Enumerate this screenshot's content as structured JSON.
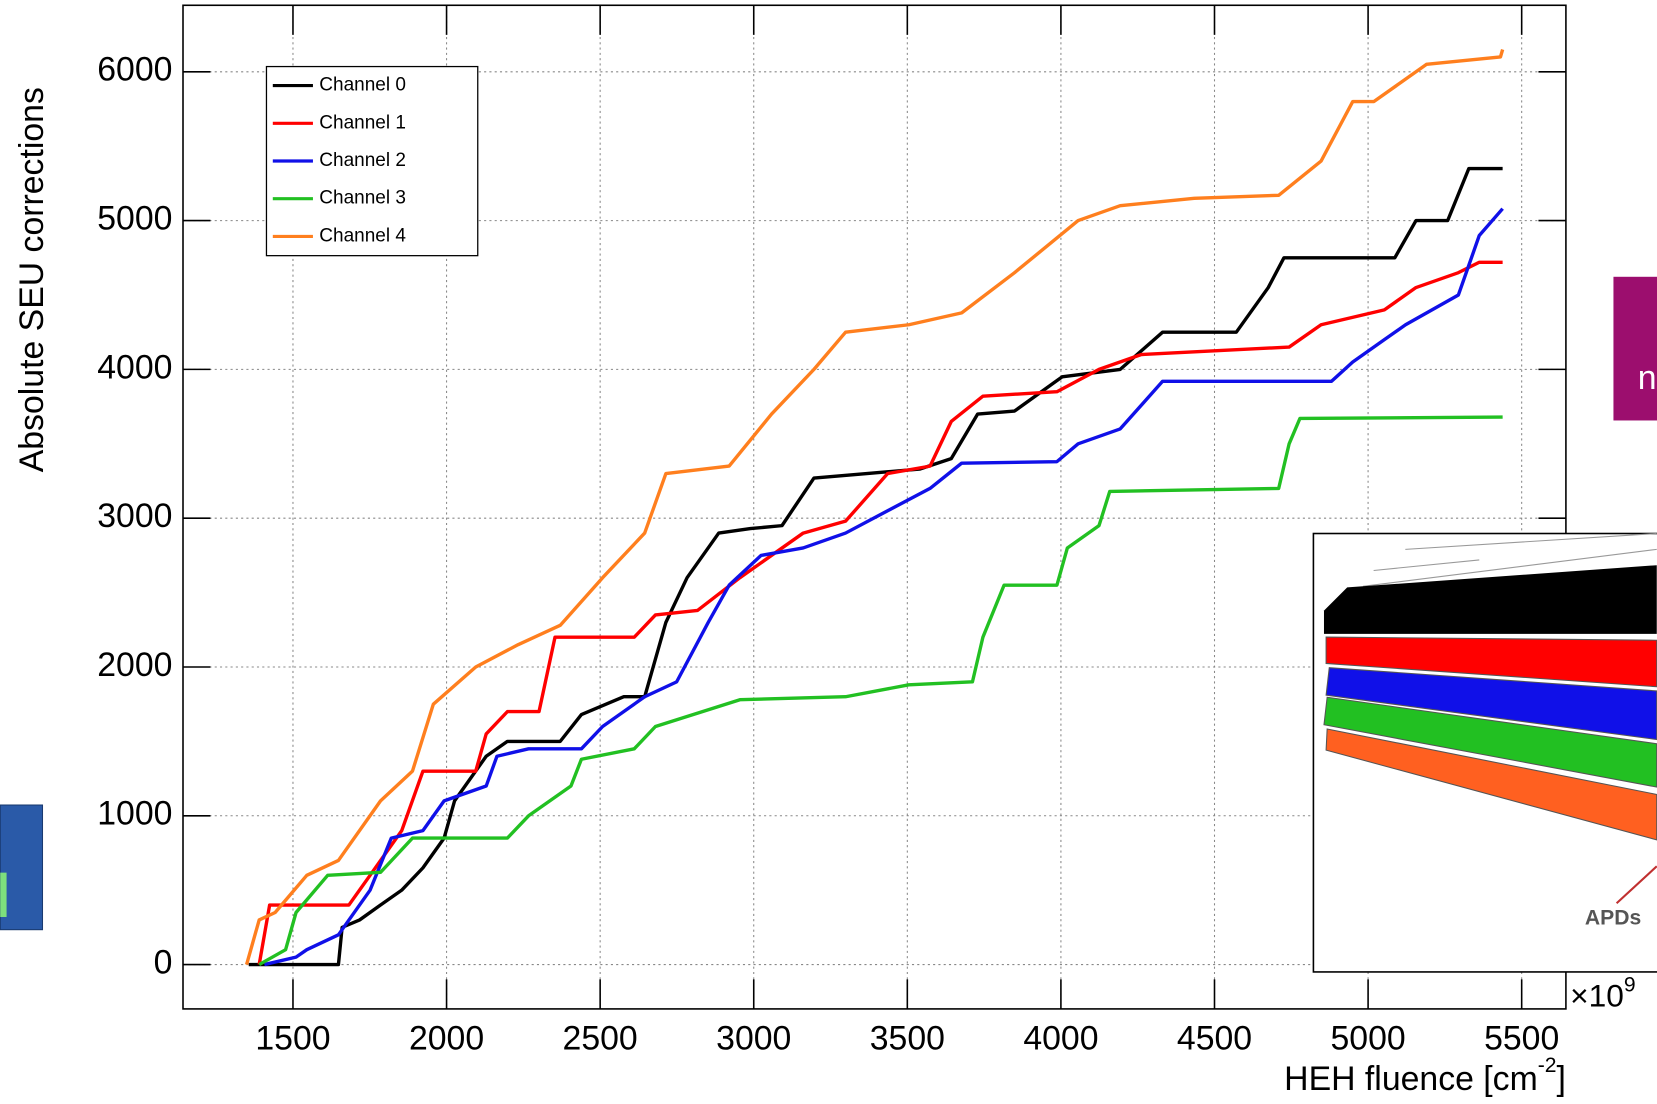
{
  "chart_data": {
    "type": "line",
    "y_label": "Absolute SEU corrections",
    "x_label": [
      "HEH fluence [cm",
      "-2",
      "]"
    ],
    "x_multiplier": [
      "×10",
      "9"
    ],
    "xlim": [
      1142,
      5644
    ],
    "xticks": [
      1500,
      2000,
      2500,
      3000,
      3500,
      4000,
      4500,
      5000,
      5500
    ],
    "ylim": [
      -298,
      6447
    ],
    "yticks": [
      0,
      1000,
      2000,
      3000,
      4000,
      5000,
      6000
    ],
    "grid": true,
    "legend": "upper left",
    "series": [
      {
        "name": "Channel 0",
        "color": "#000000",
        "x": [
          1356,
          1648,
          1660,
          1717,
          1785,
          1854,
          1923,
          1992,
          2026,
          2129,
          2198,
          2370,
          2439,
          2577,
          2645,
          2714,
          2783,
          2886,
          2989,
          3092,
          3196,
          3368,
          3540,
          3643,
          3729,
          3849,
          4004,
          4193,
          4331,
          4571,
          4675,
          4726,
          5087,
          5156,
          5259,
          5328,
          5438
        ],
        "values": [
          0,
          0,
          250,
          300,
          400,
          500,
          650,
          850,
          1100,
          1400,
          1500,
          1500,
          1680,
          1800,
          1800,
          2300,
          2600,
          2900,
          2930,
          2950,
          3270,
          3300,
          3330,
          3400,
          3700,
          3720,
          3950,
          4000,
          4250,
          4250,
          4550,
          4750,
          4750,
          5000,
          5000,
          5350,
          5350
        ]
      },
      {
        "name": "Channel 1",
        "color": "#ff0000",
        "x": [
          1390,
          1424,
          1682,
          1751,
          1854,
          1923,
          2095,
          2129,
          2198,
          2301,
          2353,
          2611,
          2680,
          2817,
          2955,
          3161,
          3299,
          3436,
          3574,
          3643,
          3746,
          3987,
          4124,
          4262,
          4743,
          4847,
          5053,
          5156,
          5294,
          5362,
          5438
        ],
        "values": [
          0,
          400,
          400,
          600,
          900,
          1300,
          1300,
          1550,
          1700,
          1700,
          2200,
          2200,
          2350,
          2380,
          2600,
          2900,
          2980,
          3300,
          3350,
          3650,
          3820,
          3850,
          4000,
          4100,
          4150,
          4300,
          4400,
          4550,
          4650,
          4720,
          4720
        ]
      },
      {
        "name": "Channel 2",
        "color": "#1010e8",
        "x": [
          1407,
          1510,
          1545,
          1648,
          1751,
          1820,
          1923,
          1992,
          2129,
          2164,
          2267,
          2439,
          2508,
          2645,
          2749,
          2852,
          2920,
          3024,
          3161,
          3299,
          3436,
          3574,
          3677,
          3987,
          4056,
          4193,
          4331,
          4881,
          4950,
          5053,
          5122,
          5294,
          5362,
          5438
        ],
        "values": [
          0,
          50,
          100,
          200,
          500,
          850,
          900,
          1100,
          1200,
          1400,
          1450,
          1450,
          1600,
          1800,
          1900,
          2300,
          2550,
          2750,
          2800,
          2900,
          3050,
          3200,
          3370,
          3380,
          3500,
          3600,
          3920,
          3920,
          4050,
          4200,
          4300,
          4500,
          4900,
          5080
        ]
      },
      {
        "name": "Channel 3",
        "color": "#22c022",
        "x": [
          1390,
          1476,
          1510,
          1613,
          1785,
          1889,
          2198,
          2267,
          2405,
          2439,
          2611,
          2680,
          2955,
          3299,
          3505,
          3712,
          3746,
          3815,
          3987,
          4021,
          4124,
          4159,
          4709,
          4743,
          4778,
          5438
        ],
        "values": [
          0,
          100,
          350,
          600,
          620,
          850,
          850,
          1000,
          1200,
          1380,
          1450,
          1600,
          1780,
          1800,
          1880,
          1900,
          2200,
          2550,
          2550,
          2800,
          2950,
          3180,
          3200,
          3500,
          3670,
          3680
        ]
      },
      {
        "name": "Channel 4",
        "color": "#ff7f1e",
        "x": [
          1349,
          1390,
          1442,
          1545,
          1648,
          1785,
          1889,
          1957,
          2095,
          2233,
          2370,
          2508,
          2645,
          2714,
          2920,
          3058,
          3196,
          3299,
          3505,
          3677,
          3849,
          4056,
          4193,
          4434,
          4709,
          4847,
          4950,
          5019,
          5190,
          5431,
          5438
        ],
        "values": [
          0,
          300,
          350,
          600,
          700,
          1100,
          1300,
          1750,
          2000,
          2150,
          2280,
          2600,
          2900,
          3300,
          3350,
          3700,
          4000,
          4250,
          4300,
          4380,
          4650,
          5000,
          5100,
          5150,
          5170,
          5400,
          5800,
          5800,
          6050,
          6100,
          6150
        ]
      }
    ]
  },
  "overlay": {
    "inset_label": "APDs",
    "slide_fragment": "n"
  }
}
